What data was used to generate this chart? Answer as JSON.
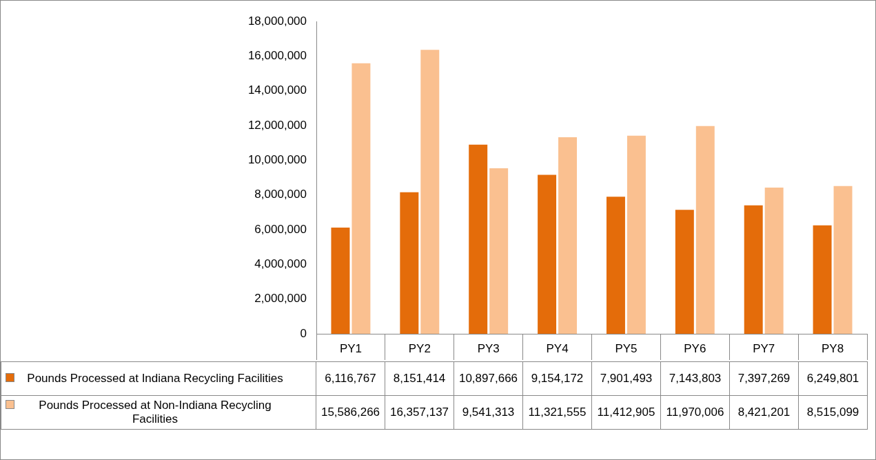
{
  "chart_data": {
    "type": "bar",
    "categories": [
      "PY1",
      "PY2",
      "PY3",
      "PY4",
      "PY5",
      "PY6",
      "PY7",
      "PY8"
    ],
    "series": [
      {
        "name": "Pounds Processed at Indiana Recycling Facilities",
        "color": "#e46c0a",
        "values": [
          6116767,
          8151414,
          10897666,
          9154172,
          7901493,
          7143803,
          7397269,
          6249801
        ],
        "value_labels": [
          "6,116,767",
          "8,151,414",
          "10,897,666",
          "9,154,172",
          "7,901,493",
          "7,143,803",
          "7,397,269",
          "6,249,801"
        ]
      },
      {
        "name": "Pounds Processed at Non-Indiana Recycling Facilities",
        "color": "#fac090",
        "values": [
          15586266,
          16357137,
          9541313,
          11321555,
          11412905,
          11970006,
          8421201,
          8515099
        ],
        "value_labels": [
          "15,586,266",
          "16,357,137",
          "9,541,313",
          "11,321,555",
          "11,412,905",
          "11,970,006",
          "8,421,201",
          "8,515,099"
        ]
      }
    ],
    "ylim": [
      0,
      18000000
    ],
    "yticks": [
      {
        "value": 0,
        "label": "0"
      },
      {
        "value": 2000000,
        "label": "2,000,000"
      },
      {
        "value": 4000000,
        "label": "4,000,000"
      },
      {
        "value": 6000000,
        "label": "6,000,000"
      },
      {
        "value": 8000000,
        "label": "8,000,000"
      },
      {
        "value": 10000000,
        "label": "10,000,000"
      },
      {
        "value": 12000000,
        "label": "12,000,000"
      },
      {
        "value": 14000000,
        "label": "14,000,000"
      },
      {
        "value": 16000000,
        "label": "16,000,000"
      },
      {
        "value": 18000000,
        "label": "18,000,000"
      }
    ],
    "grid": false,
    "legend": "bottom"
  }
}
